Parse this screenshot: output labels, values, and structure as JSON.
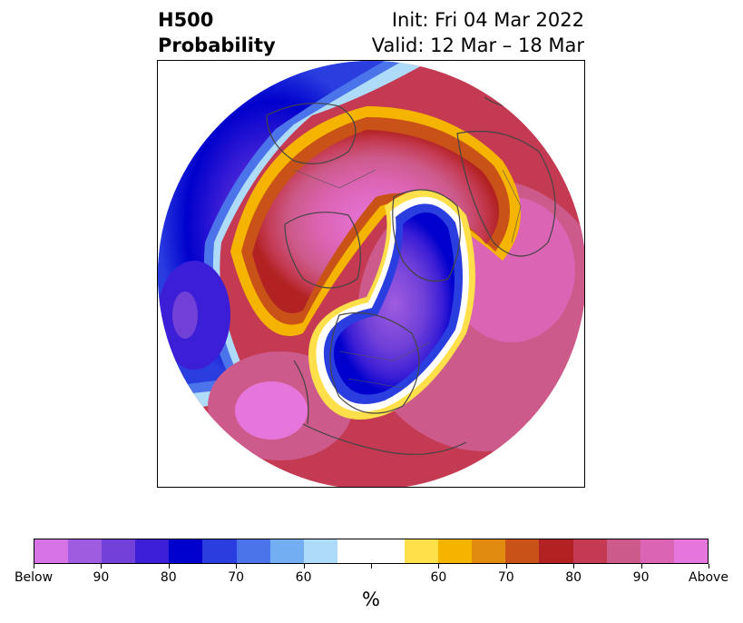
{
  "title": {
    "left_line1": "H500",
    "left_line2": "Probability",
    "right_line1": "Init: Fri 04 Mar 2022",
    "right_line2": "Valid: 12 Mar – 18 Mar"
  },
  "colorbar": {
    "unit": "%",
    "colors": [
      "#d674e6",
      "#a05ce0",
      "#7040d8",
      "#3c1ed6",
      "#0000cc",
      "#2a3ee0",
      "#4c74ea",
      "#74aef2",
      "#aedcf8",
      "#ffffff",
      "#ffffff",
      "#ffe04a",
      "#f4b400",
      "#e08a10",
      "#c85218",
      "#b22222",
      "#c43a52",
      "#cc5a8a",
      "#dc64b4",
      "#e676dc"
    ],
    "tick_labels": [
      "Below",
      "90",
      "80",
      "70",
      "60",
      "",
      "60",
      "70",
      "80",
      "90",
      "Above"
    ]
  },
  "map": {
    "features": [
      "north-polar-stereographic-projection",
      "coastlines",
      "country-borders",
      "state-borders"
    ]
  }
}
